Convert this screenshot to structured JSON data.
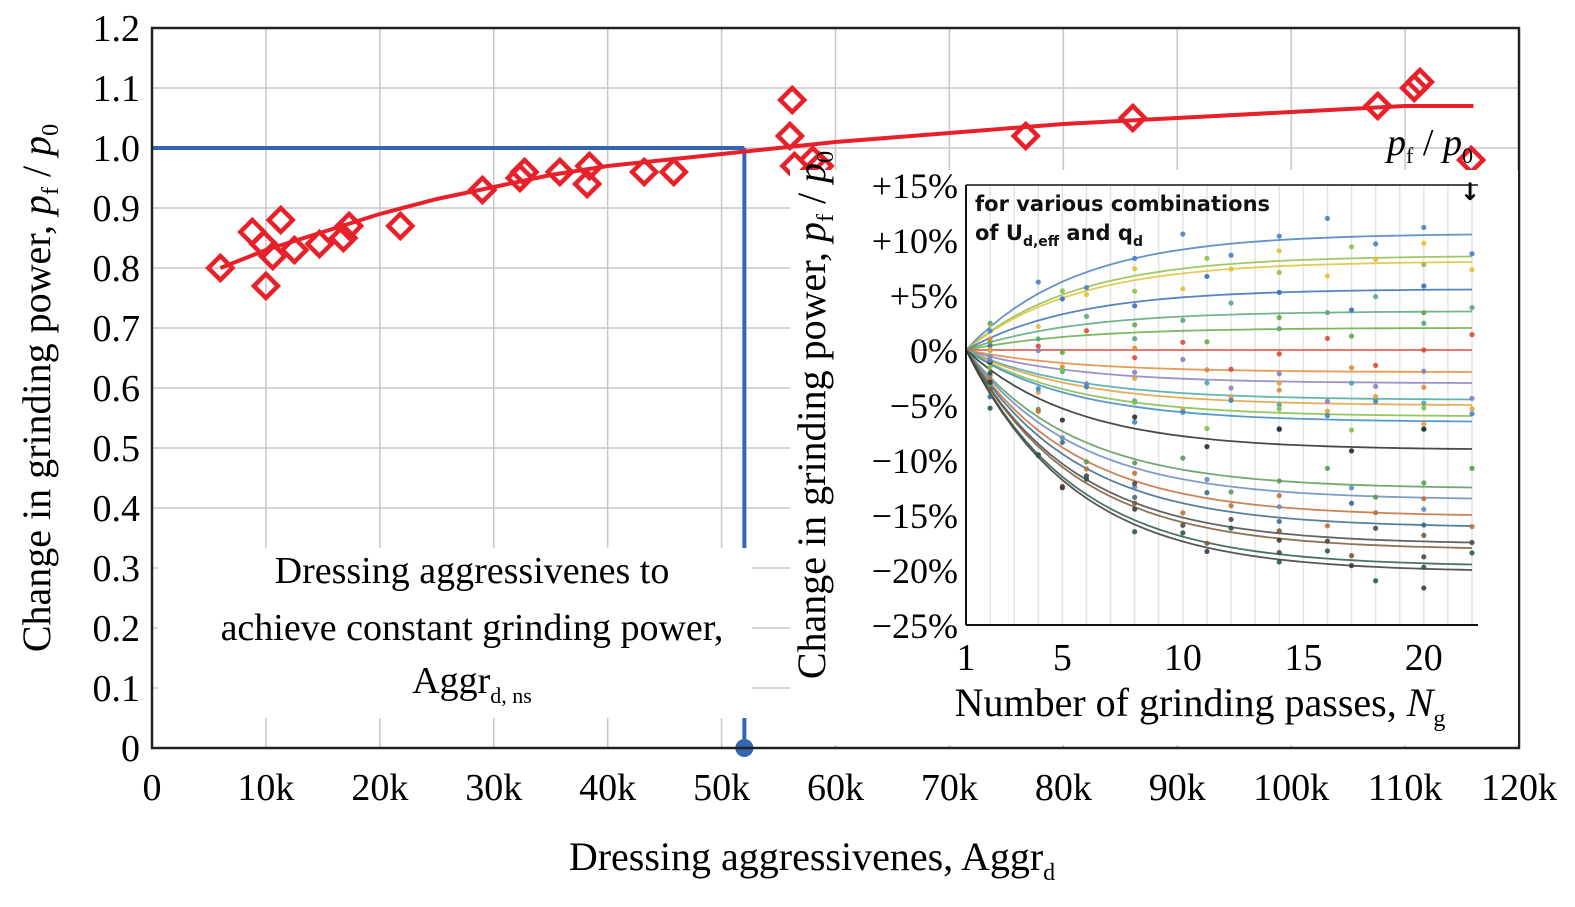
{
  "chart_data": [
    {
      "type": "scatter",
      "ylabel_text": "Change in grinding power, ",
      "ylabel_pf": "p",
      "ylabel_pf_sub": "f",
      "ylabel_slash": " / ",
      "ylabel_p0": "p",
      "ylabel_p0_sub": "0",
      "xlabel_text": "Dressing aggressivenes, Aggr",
      "xlabel_sub": "d",
      "xlim": [
        0,
        120000
      ],
      "ylim": [
        0,
        1.2
      ],
      "x_ticks": [
        0,
        10000,
        20000,
        30000,
        40000,
        50000,
        60000,
        70000,
        80000,
        90000,
        100000,
        110000,
        120000
      ],
      "x_tick_labels": [
        "0",
        "10k",
        "20k",
        "30k",
        "40k",
        "50k",
        "60k",
        "70k",
        "80k",
        "90k",
        "100k",
        "110k",
        "120k"
      ],
      "y_ticks": [
        0,
        0.1,
        0.2,
        0.3,
        0.4,
        0.5,
        0.6,
        0.7,
        0.8,
        0.9,
        1.0,
        1.1,
        1.2
      ],
      "y_tick_labels": [
        "0",
        "0.1",
        "0.2",
        "0.3",
        "0.4",
        "0.5",
        "0.6",
        "0.7",
        "0.8",
        "0.9",
        "1.0",
        "1.1",
        "1.2"
      ],
      "grid": true,
      "series": [
        {
          "marker": "diamond-open",
          "color": "#e8202a",
          "points": [
            [
              6000,
              0.8
            ],
            [
              8800,
              0.86
            ],
            [
              9800,
              0.84
            ],
            [
              10000,
              0.77
            ],
            [
              10600,
              0.82
            ],
            [
              11300,
              0.88
            ],
            [
              12500,
              0.83
            ],
            [
              14700,
              0.84
            ],
            [
              16800,
              0.85
            ],
            [
              17300,
              0.87
            ],
            [
              21800,
              0.87
            ],
            [
              29000,
              0.93
            ],
            [
              32300,
              0.95
            ],
            [
              32700,
              0.96
            ],
            [
              35800,
              0.96
            ],
            [
              38400,
              0.97
            ],
            [
              38200,
              0.94
            ],
            [
              43200,
              0.96
            ],
            [
              45800,
              0.96
            ],
            [
              56200,
              1.08
            ],
            [
              56000,
              1.02
            ],
            [
              56400,
              0.97
            ],
            [
              58000,
              0.98
            ],
            [
              58600,
              0.97
            ],
            [
              76700,
              1.02
            ],
            [
              86100,
              1.05
            ],
            [
              107600,
              1.07
            ],
            [
              110800,
              1.1
            ],
            [
              111300,
              1.11
            ],
            [
              115800,
              0.98
            ]
          ]
        }
      ],
      "fit_curve": {
        "color": "#e8202a",
        "points": [
          [
            6000,
            0.8
          ],
          [
            10000,
            0.83
          ],
          [
            15000,
            0.86
          ],
          [
            20000,
            0.89
          ],
          [
            25000,
            0.915
          ],
          [
            30000,
            0.935
          ],
          [
            35000,
            0.955
          ],
          [
            40000,
            0.97
          ],
          [
            45000,
            0.98
          ],
          [
            50000,
            0.99
          ],
          [
            55000,
            1.0
          ],
          [
            60000,
            1.01
          ],
          [
            70000,
            1.025
          ],
          [
            80000,
            1.04
          ],
          [
            90000,
            1.05
          ],
          [
            100000,
            1.06
          ],
          [
            110000,
            1.07
          ],
          [
            116000,
            1.07
          ]
        ]
      },
      "guide": {
        "color": "#3466b0",
        "y": 1.0,
        "x": 52000
      },
      "annotation_line1": "Dressing aggressivenes to",
      "annotation_line2": "achieve constant grinding power,",
      "annotation_line3": "Aggr",
      "annotation_line3_sub": "d, ns"
    },
    {
      "type": "scatter",
      "title_line1": "for various combinations",
      "title_line2_a": "of U",
      "title_line2_sub1": "d,eff",
      "title_line2_b": " and q",
      "title_line2_sub2": "d",
      "ylabel_text": "Change in grinding power, ",
      "ylabel_p": "p",
      "ylabel_sub": "f",
      "ylabel_slash": " / ",
      "ylabel_p0": "p",
      "ylabel_p0_sub": "0",
      "top_label_p": "p",
      "top_label_sub": "f",
      "top_label_slash": " / ",
      "top_label_p0": "p",
      "top_label_p0_sub": "0",
      "top_arrow": "↓",
      "xlabel_text": "Number of grinding passes, ",
      "xlabel_N": "N",
      "xlabel_sub": "g",
      "xlim": [
        1,
        22
      ],
      "ylim": [
        -25,
        15
      ],
      "x_ticks": [
        1,
        5,
        10,
        15,
        20
      ],
      "x_tick_labels": [
        "1",
        "5",
        "10",
        "15",
        "20"
      ],
      "y_ticks": [
        15,
        10,
        5,
        0,
        -5,
        -10,
        -15,
        -20,
        -25
      ],
      "y_tick_labels": [
        "+15%",
        "+10%",
        "+5%",
        "0%",
        "−5%",
        "−10%",
        "−15%",
        "−20%",
        "−25%"
      ],
      "grid": true,
      "curve_end_values": [
        10.5,
        8.5,
        8,
        5.5,
        3.5,
        2,
        0,
        -2,
        -3,
        -4.5,
        -5,
        -6,
        -6.5,
        -9,
        -12.5,
        -13.5,
        -15,
        -16,
        -17.5,
        -18,
        -19.5,
        -20
      ],
      "colors": [
        "#4a7fc1",
        "#8fbf4a",
        "#e0c23a",
        "#3b6fb5",
        "#5aa77a",
        "#66aa44",
        "#d94a3a",
        "#e08a3a",
        "#8a7fbf",
        "#4aa7a7",
        "#e0a040",
        "#7fbf4a",
        "#3a8ac1",
        "#2a2a2a",
        "#5a9a5a",
        "#6a8ac1",
        "#c1703a",
        "#3a6a8a",
        "#4a4a4a",
        "#7a5a3a",
        "#2a5a4a",
        "#3b3b3b"
      ]
    }
  ]
}
